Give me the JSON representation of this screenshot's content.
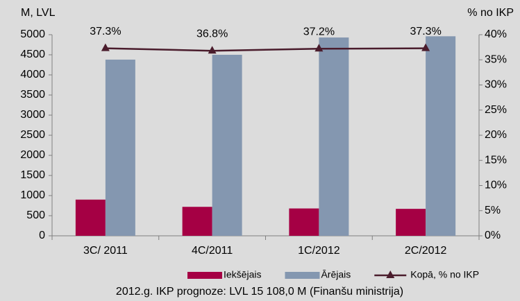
{
  "chart_data": {
    "type": "bar_line",
    "y_label": "M, LVL",
    "y2_label": "% no IKP",
    "footnote": "2012.g. IKP prognoze: LVL 15 108,0 M (Finanšu ministrija)",
    "categories": [
      "3C/ 2011",
      "4C/2011",
      "1C/2012",
      "2C/2012"
    ],
    "series": [
      {
        "name": "Iekšējais",
        "type": "bar",
        "color": "#a50044",
        "values": [
          900,
          720,
          680,
          670
        ]
      },
      {
        "name": "Ārējais",
        "type": "bar",
        "color": "#8497b0",
        "values": [
          4380,
          4500,
          4930,
          4960
        ]
      },
      {
        "name": "Kopā, % no IKP",
        "type": "line",
        "axis": "y2",
        "color": "#4a1c2c",
        "values": [
          37.3,
          36.8,
          37.2,
          37.3
        ],
        "value_labels": [
          "37.3%",
          "36.8%",
          "37.2%",
          "37.3%"
        ]
      }
    ],
    "ylim": [
      0,
      5000
    ],
    "yticks": [
      0,
      500,
      1000,
      1500,
      2000,
      2500,
      3000,
      3500,
      4000,
      4500,
      5000
    ],
    "y2lim": [
      0,
      40
    ],
    "y2ticks": [
      {
        "value": 0,
        "label": "0%"
      },
      {
        "value": 5,
        "label": "5%"
      },
      {
        "value": 10,
        "label": "10%"
      },
      {
        "value": 15,
        "label": "15%"
      },
      {
        "value": 20,
        "label": "20%"
      },
      {
        "value": 25,
        "label": "25%"
      },
      {
        "value": 30,
        "label": "30%"
      },
      {
        "value": 35,
        "label": "35%"
      },
      {
        "value": 40,
        "label": "40%"
      }
    ],
    "grid": false,
    "legend": "bottom"
  }
}
